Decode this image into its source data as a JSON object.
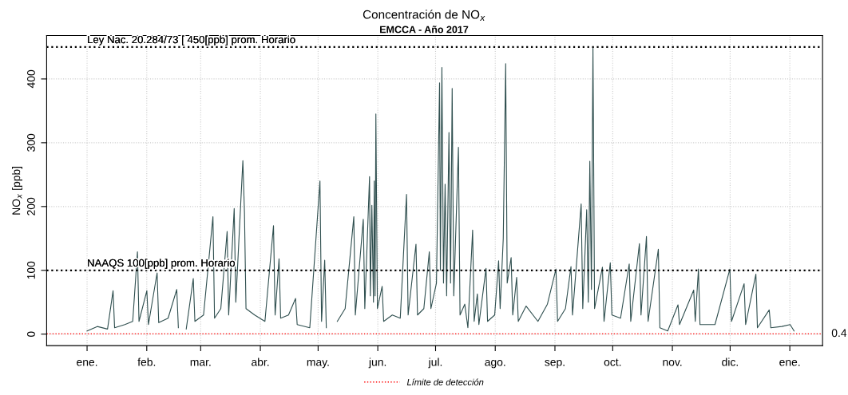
{
  "chart_data": {
    "type": "line",
    "title": "Concentración de NO$_{x}$",
    "subtitle": "EMCCA - Año 2017",
    "ylabel": "NO$_{x}$ [ppb]",
    "xlim": [
      "2016-12-11",
      "2018-01-18"
    ],
    "ylim": [
      -18,
      468
    ],
    "yticks": [
      0,
      100,
      200,
      300,
      400
    ],
    "xticks": [
      {
        "value": "2017-01-01",
        "label": "ene."
      },
      {
        "value": "2017-02-01",
        "label": "feb."
      },
      {
        "value": "2017-03-01",
        "label": "mar."
      },
      {
        "value": "2017-04-01",
        "label": "abr."
      },
      {
        "value": "2017-05-01",
        "label": "may."
      },
      {
        "value": "2017-06-01",
        "label": "jun."
      },
      {
        "value": "2017-07-01",
        "label": "jul."
      },
      {
        "value": "2017-08-01",
        "label": "ago."
      },
      {
        "value": "2017-09-01",
        "label": "sep."
      },
      {
        "value": "2017-10-01",
        "label": "oct."
      },
      {
        "value": "2017-11-01",
        "label": "nov."
      },
      {
        "value": "2017-12-01",
        "label": "dic."
      },
      {
        "value": "2018-01-01",
        "label": "ene."
      }
    ],
    "grid": true,
    "legend": "bottom",
    "marker": "none",
    "line_style": "solid",
    "ref_lines": [
      {
        "axis": "y",
        "value": 450,
        "label": "Ley Nac. 20.284/73 [ 450[ppb] prom. Horario",
        "color": "#000000",
        "line_style": "dotted"
      },
      {
        "axis": "y",
        "value": 100,
        "label": "NAAQS 100[ppb] prom. Horario",
        "color": "#000000",
        "line_style": "dotted"
      },
      {
        "axis": "y",
        "value": 0.4,
        "label": "Límite de detección",
        "color": "#ff0000",
        "line_style": "dotted"
      }
    ],
    "annotations": [
      {
        "text": "0.4",
        "x": "2018-01-18",
        "y": 0.4
      }
    ],
    "series": [
      {
        "color": "#2f4f4f",
        "x": [
          "2017-01-01T00:00",
          "2017-01-06T07:00",
          "2017-01-11T15:00",
          "2017-01-14T12:00",
          "2017-01-15T07:00",
          "2017-01-20T15:00",
          "2017-01-24T17:00",
          "2017-01-27T04:00",
          "2017-01-27T23:00",
          "2017-02-01T01:00",
          "2017-02-01T21:00",
          "2017-02-06T09:00",
          "2017-02-07T05:00",
          "2017-02-12T02:00",
          "2017-02-16T14:00",
          "2017-02-17T10:00",
          "2017-02-19T01:00",
          "2017-02-21T12:00",
          "2017-02-25T04:00",
          "2017-02-26T00:00",
          "2017-03-02T12:00",
          "2017-03-07T09:00",
          "2017-03-08T05:00",
          "2017-03-11T11:00",
          "2017-03-14T18:00",
          "2017-03-15T13:00",
          "2017-03-18T10:00",
          "2017-03-19T06:00",
          "2017-03-22T22:00",
          "2017-03-23T18:00",
          "2017-03-24T13:00",
          "2017-03-29T01:00",
          "2017-04-03T09:00",
          "2017-04-07T20:00",
          "2017-04-08T16:00",
          "2017-04-10T17:00",
          "2017-04-11T13:00",
          "2017-04-15T15:00",
          "2017-04-19T07:00",
          "2017-04-20T03:00",
          "2017-04-26T16:00",
          "2017-05-01T23:00",
          "2017-05-02T19:00",
          "2017-05-04T10:00",
          "2017-05-05T06:00",
          "2017-05-08T12:00",
          "2017-05-10T23:00",
          "2017-05-15T01:00",
          "2017-05-19T13:00",
          "2017-05-20T08:00",
          "2017-05-24T11:00",
          "2017-05-25T06:00",
          "2017-05-27T17:00",
          "2017-05-28T03:00",
          "2017-05-28T22:00",
          "2017-05-29T18:00",
          "2017-05-30T04:00",
          "2017-05-30T14:00",
          "2017-05-31T00:00",
          "2017-05-31T19:00",
          "2017-06-03T06:00",
          "2017-06-04T01:00",
          "2017-06-08T13:00",
          "2017-06-12T16:00",
          "2017-06-15T22:00",
          "2017-06-16T18:00",
          "2017-06-20T20:00",
          "2017-06-21T15:00",
          "2017-06-24T22:00",
          "2017-06-27T18:00",
          "2017-06-28T14:00",
          "2017-07-01T11:00",
          "2017-07-03T02:00",
          "2017-07-03T12:00",
          "2017-07-04T07:00",
          "2017-07-05T03:00",
          "2017-07-05T23:00",
          "2017-07-06T18:00",
          "2017-07-07T23:00",
          "2017-07-08T19:00",
          "2017-07-09T15:00",
          "2017-07-10T11:00",
          "2017-07-12T21:00",
          "2017-07-13T17:00",
          "2017-07-16T04:00",
          "2017-07-17T19:00",
          "2017-07-20T06:00",
          "2017-07-21T01:00",
          "2017-07-22T17:00",
          "2017-07-23T12:00",
          "2017-07-27T05:00",
          "2017-07-28T00:00",
          "2017-07-31T17:00",
          "2017-08-02T18:00",
          "2017-08-03T13:00",
          "2017-08-05T04:00",
          "2017-08-06T10:00",
          "2017-08-07T05:00",
          "2017-08-09T06:00",
          "2017-08-10T02:00",
          "2017-08-12T03:00",
          "2017-08-12T23:00",
          "2017-08-17T01:00",
          "2017-08-23T04:00",
          "2017-08-28T02:00",
          "2017-09-01T13:00",
          "2017-09-02T09:00",
          "2017-09-06T11:00",
          "2017-09-09T08:00",
          "2017-09-10T03:00",
          "2017-09-14T15:00",
          "2017-09-15T11:00",
          "2017-09-17T12:00",
          "2017-09-18T08:00",
          "2017-09-19T03:00",
          "2017-09-19T23:00",
          "2017-09-20T18:00",
          "2017-09-21T14:00",
          "2017-09-25T16:00",
          "2017-09-26T12:00",
          "2017-09-29T18:00",
          "2017-09-30T14:00",
          "2017-10-05T02:00",
          "2017-10-09T14:00",
          "2017-10-10T09:00",
          "2017-10-14T21:00",
          "2017-10-15T17:00",
          "2017-10-18T13:00",
          "2017-10-19T09:00",
          "2017-10-24T17:00",
          "2017-10-25T12:00",
          "2017-10-29T14:00",
          "2017-11-03T22:00",
          "2017-11-04T17:00",
          "2017-11-12T02:00",
          "2017-11-12T21:00",
          "2017-11-14T13:00",
          "2017-11-15T08:00",
          "2017-11-23T03:00",
          "2017-11-30T21:00",
          "2017-12-01T17:00",
          "2017-12-08T06:00",
          "2017-12-09T01:00",
          "2017-12-14T09:00",
          "2017-12-15T04:00",
          "2017-12-21T07:00",
          "2017-12-22T03:00",
          "2017-12-27T20:00",
          "2018-01-01T04:00",
          "2018-01-03T05:00"
        ],
        "values": [
          5,
          12,
          8,
          68,
          10,
          15,
          20,
          129,
          20,
          68,
          15,
          96,
          18,
          25,
          70,
          10,
          null,
          8,
          87,
          20,
          30,
          184,
          25,
          40,
          161,
          30,
          197,
          50,
          272,
          190,
          40,
          30,
          20,
          170,
          30,
          118,
          25,
          30,
          56,
          15,
          10,
          240,
          20,
          116,
          10,
          null,
          20,
          40,
          184,
          30,
          180,
          40,
          247,
          60,
          202,
          50,
          240,
          60,
          345,
          40,
          75,
          20,
          30,
          25,
          219,
          30,
          141,
          30,
          40,
          129,
          40,
          80,
          394,
          100,
          418,
          80,
          235,
          60,
          316,
          80,
          385,
          60,
          293,
          30,
          47,
          10,
          163,
          20,
          63,
          15,
          103,
          20,
          30,
          115,
          40,
          150,
          424,
          80,
          120,
          30,
          89,
          20,
          44,
          20,
          47,
          102,
          20,
          40,
          106,
          30,
          204,
          40,
          195,
          50,
          271,
          70,
          450,
          40,
          105,
          20,
          112,
          30,
          25,
          110,
          20,
          142,
          30,
          153,
          20,
          133,
          10,
          5,
          46,
          15,
          69,
          20,
          102,
          15,
          15,
          102,
          20,
          79,
          15,
          94,
          10,
          38,
          10,
          12,
          15,
          5
        ]
      }
    ]
  }
}
